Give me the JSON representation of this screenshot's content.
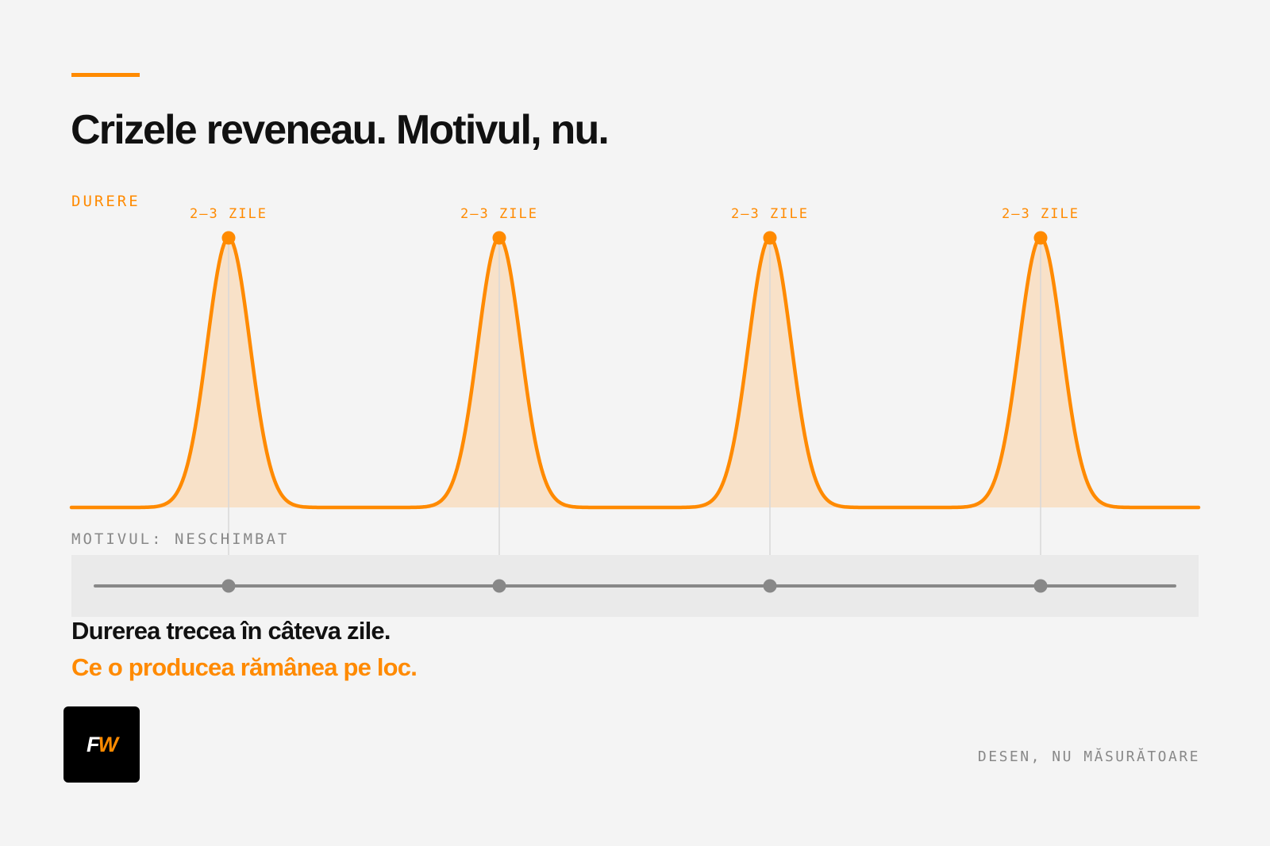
{
  "title": "Crizele reveneau. Motivul, nu.",
  "colors": {
    "accent": "#ff8a00",
    "fill": "#f8e1c8",
    "text": "#111111",
    "muted": "#888888",
    "band": "#eaeaea",
    "baseline_line": "#888888",
    "guide": "#d8d8d8"
  },
  "diagram": {
    "pain_label": "DURERE",
    "cause_label": "MOTIVUL: NESCHIMBAT",
    "peaks": [
      {
        "label": "2–3 ZILE"
      },
      {
        "label": "2–3 ZILE"
      },
      {
        "label": "2–3 ZILE"
      },
      {
        "label": "2–3 ZILE"
      }
    ]
  },
  "conclusion": {
    "line1": "Durerea trecea în câteva zile.",
    "line2": "Ce o producea rămânea pe loc."
  },
  "logo": {
    "text_main": "F",
    "text_accent": "W"
  },
  "footnote": "DESEN, NU MĂSURĂTOARE"
}
